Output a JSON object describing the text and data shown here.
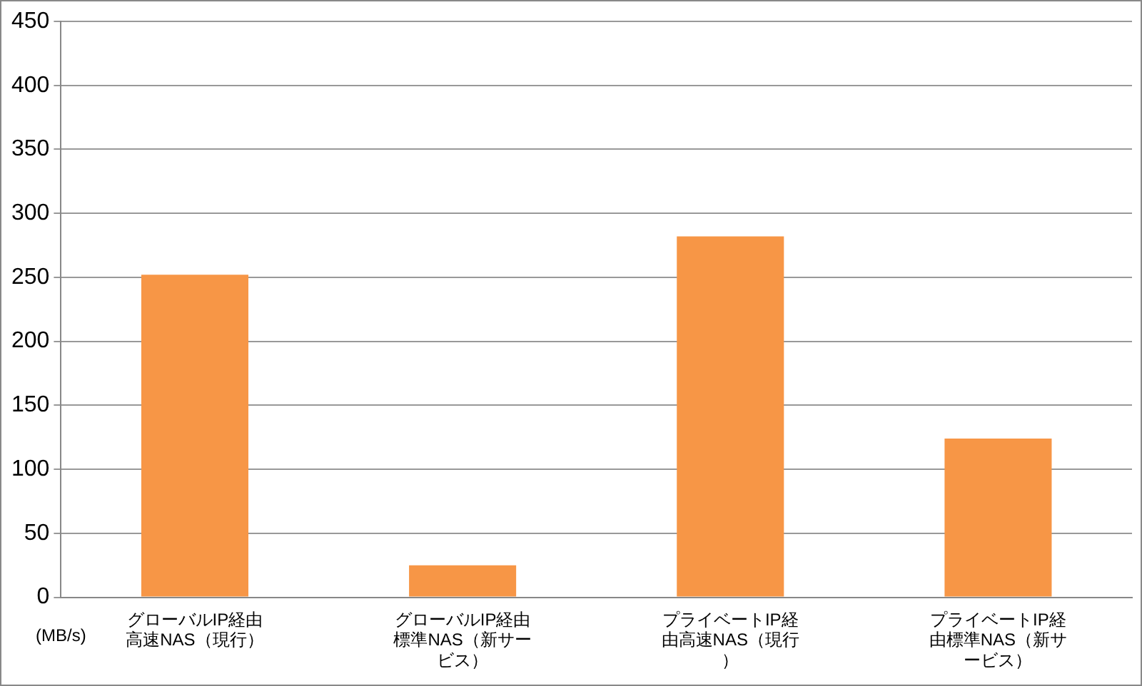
{
  "chart_data": {
    "type": "bar",
    "ylabel": "(MB/s)",
    "categories": [
      "グローバルIP経由高速NAS（現行）",
      "グローバルIP経由標準NAS（新サービス）",
      "プライベートIP経由高速NAS（現行）",
      "プライベートIP経由標準NAS（新サービス）"
    ],
    "values": [
      252,
      25,
      282,
      124
    ],
    "color": "#f79646",
    "ylim": [
      0,
      450
    ],
    "yticks": [
      0,
      50,
      100,
      150,
      200,
      250,
      300,
      350,
      400,
      450
    ],
    "grid": "y",
    "legend": false
  }
}
